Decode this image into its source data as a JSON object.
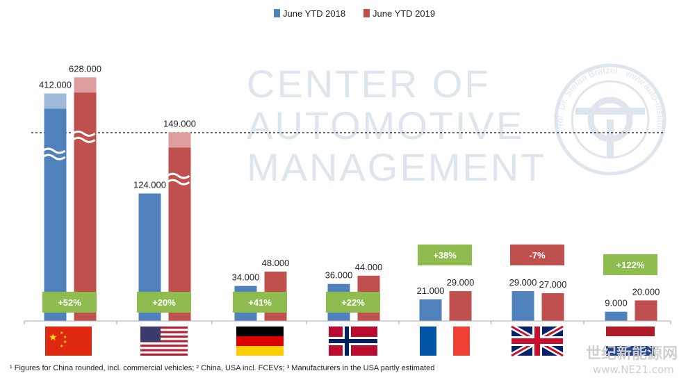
{
  "chart_data": {
    "type": "bar",
    "categories": [
      "China",
      "USA",
      "Germany",
      "Norway",
      "France",
      "UK",
      "Netherlands"
    ],
    "series": [
      {
        "name": "June YTD 2018",
        "color": "#4f81bd",
        "values": [
          412000,
          124000,
          34000,
          36000,
          21000,
          29000,
          9000
        ],
        "labels": [
          "412.000",
          "124.000",
          "34.000",
          "36.000",
          "21.000",
          "29.000",
          "9.000"
        ]
      },
      {
        "name": "June YTD 2019",
        "color": "#c0504d",
        "values": [
          628000,
          149000,
          48000,
          44000,
          29000,
          27000,
          20000
        ],
        "labels": [
          "628.000",
          "149.000",
          "48.000",
          "44.000",
          "29.000",
          "27.000",
          "20.000"
        ]
      }
    ],
    "changes": [
      {
        "text": "+52%",
        "positive": true
      },
      {
        "text": "+20%",
        "positive": true
      },
      {
        "text": "+41%",
        "positive": true
      },
      {
        "text": "+22%",
        "positive": true
      },
      {
        "text": "+38%",
        "positive": true
      },
      {
        "text": "-7%",
        "positive": false
      },
      {
        "text": "+122%",
        "positive": true
      }
    ],
    "axis_break": true,
    "legend_position": "top-center",
    "title": "",
    "xlabel": "",
    "ylabel": ""
  },
  "colors": {
    "positive_badge": "#8fbc4f",
    "negative_badge": "#c0504d",
    "watermark": "#dfe5ec"
  },
  "watermark": {
    "lines": [
      "CENTER OF",
      "AUTOMOTIVE",
      "MANAGEMENT"
    ],
    "seal_text": "Prof. Dr. Stefan Bratzel · www.auto-institut.de",
    "site_logo": "世纪新能源网",
    "site_url": "www.NE21.com"
  },
  "footnote": "¹ Figures for China rounded, incl. commercial vehicles; ² China, USA incl. FCEVs; ³ Manufacturers in the USA partly estimated"
}
